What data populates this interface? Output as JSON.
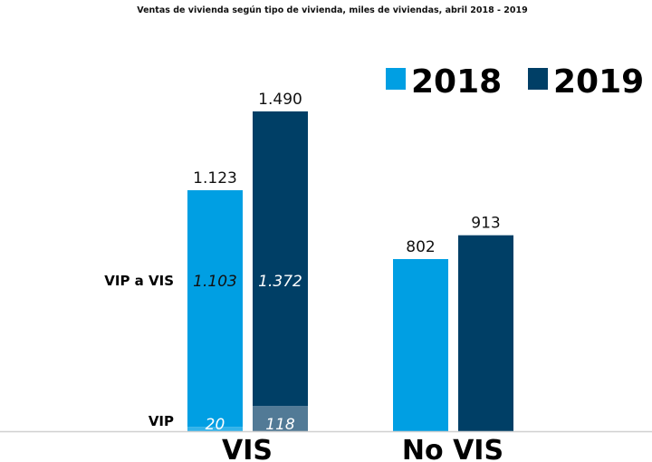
{
  "chart_data": {
    "type": "bar",
    "title": "Ventas de vivienda según tipo de vivienda, miles de viviendas, abril 2018 - 2019",
    "xlabel": "",
    "ylabel": "",
    "ylim": [
      0,
      1600
    ],
    "grid": false,
    "legend_position": "top-right",
    "categories": [
      "VIS",
      "No VIS"
    ],
    "series": [
      {
        "name": "2018",
        "color": "#009fe3",
        "values": [
          1123,
          802
        ],
        "value_labels": [
          "1.123",
          "802"
        ],
        "segments": [
          {
            "name": "VIP",
            "values": [
              20,
              null
            ],
            "labels": [
              "20",
              ""
            ],
            "color": "#33b3ea"
          },
          {
            "name": "VIP a VIS",
            "values": [
              1103,
              null
            ],
            "labels": [
              "1.103",
              ""
            ],
            "color": "#009fe3"
          }
        ]
      },
      {
        "name": "2019",
        "color": "#003f66",
        "values": [
          1490,
          913
        ],
        "value_labels": [
          "1.490",
          "913"
        ],
        "segments": [
          {
            "name": "VIP",
            "values": [
              118,
              null
            ],
            "labels": [
              "118",
              ""
            ],
            "color": "#527a96"
          },
          {
            "name": "VIP a VIS",
            "values": [
              1372,
              null
            ],
            "labels": [
              "1.372",
              ""
            ],
            "color": "#003f66"
          }
        ]
      }
    ],
    "segment_labels": [
      "VIP a VIS",
      "VIP"
    ]
  }
}
